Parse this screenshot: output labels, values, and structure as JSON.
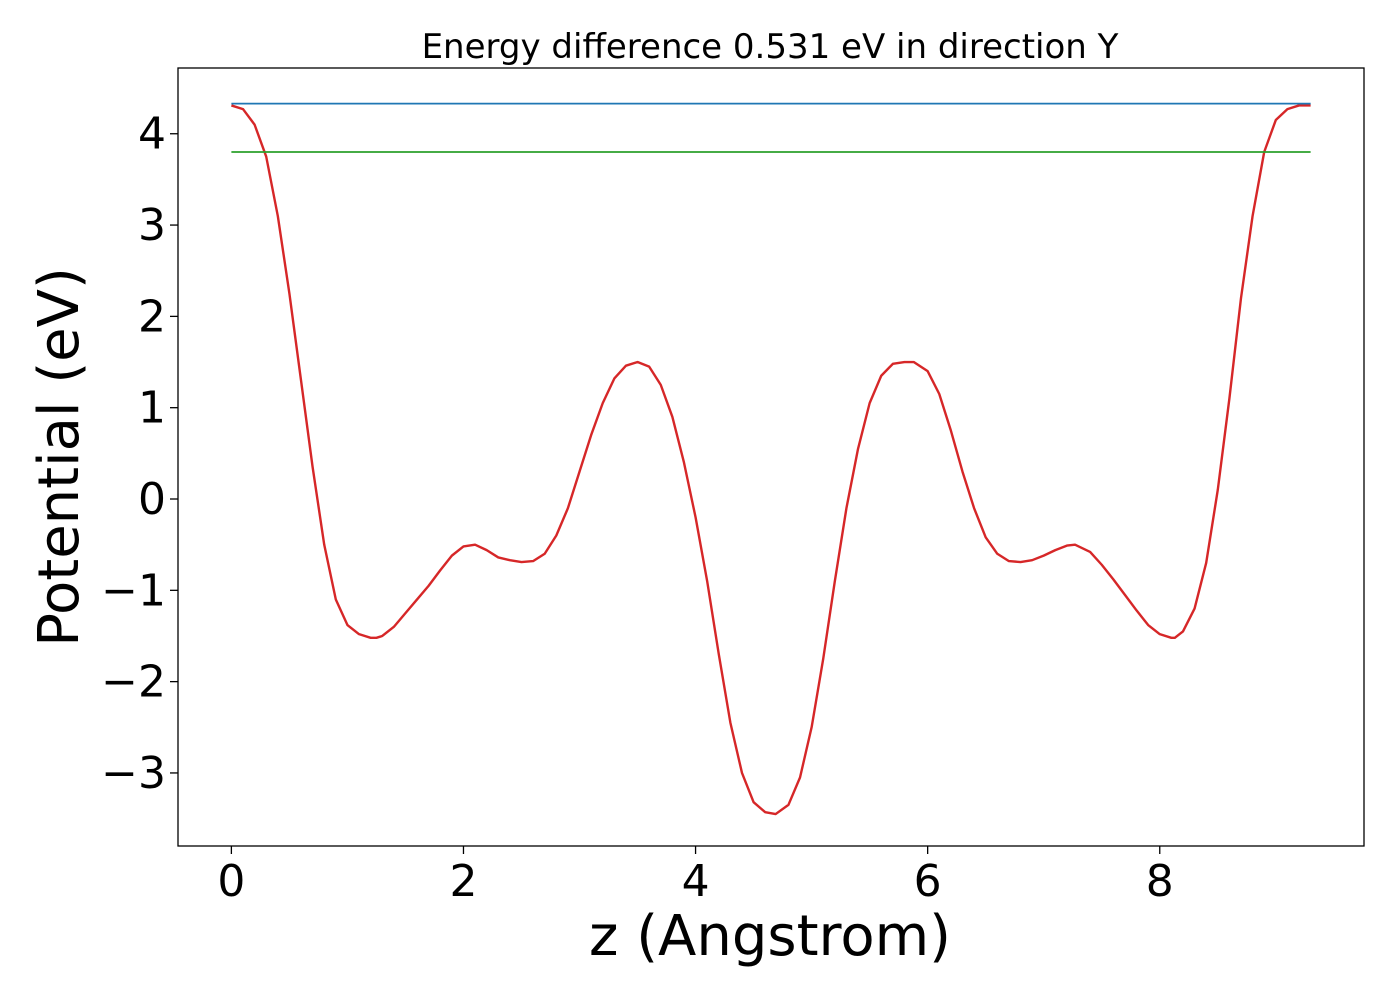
{
  "chart_data": {
    "type": "line",
    "title": "Energy difference 0.531 eV in direction Y",
    "xlabel": "z (Angstrom)",
    "ylabel": "Potential (eV)",
    "xlim": [
      -0.46,
      9.76
    ],
    "ylim": [
      -3.8,
      4.72
    ],
    "xticks": [
      0,
      2,
      4,
      6,
      8
    ],
    "xtick_labels": [
      "0",
      "2",
      "4",
      "6",
      "8"
    ],
    "yticks": [
      -3,
      -2,
      -1,
      0,
      1,
      2,
      3,
      4
    ],
    "ytick_labels": [
      "−3",
      "−2",
      "−1",
      "0",
      "1",
      "2",
      "3",
      "4"
    ],
    "grid": false,
    "legend": "none",
    "series": [
      {
        "color": "#d62728",
        "x": [
          0,
          0.1,
          0.2,
          0.3,
          0.4,
          0.5,
          0.6,
          0.7,
          0.8,
          0.9,
          1.0,
          1.1,
          1.2,
          1.25,
          1.3,
          1.4,
          1.5,
          1.6,
          1.7,
          1.8,
          1.9,
          2.0,
          2.1,
          2.2,
          2.3,
          2.4,
          2.5,
          2.6,
          2.7,
          2.8,
          2.9,
          3.0,
          3.1,
          3.2,
          3.3,
          3.4,
          3.5,
          3.6,
          3.7,
          3.8,
          3.9,
          4.0,
          4.1,
          4.2,
          4.3,
          4.4,
          4.5,
          4.6,
          4.69,
          4.8,
          4.9,
          5.0,
          5.1,
          5.2,
          5.3,
          5.4,
          5.5,
          5.6,
          5.7,
          5.8,
          5.88,
          6.0,
          6.1,
          6.2,
          6.3,
          6.4,
          6.5,
          6.6,
          6.7,
          6.8,
          6.9,
          7.0,
          7.1,
          7.2,
          7.27,
          7.4,
          7.5,
          7.6,
          7.7,
          7.8,
          7.9,
          8.0,
          8.1,
          8.13,
          8.2,
          8.3,
          8.4,
          8.5,
          8.6,
          8.7,
          8.8,
          8.9,
          9.0,
          9.1,
          9.2,
          9.3
        ],
        "y": [
          4.31,
          4.27,
          4.1,
          3.75,
          3.1,
          2.25,
          1.3,
          0.35,
          -0.5,
          -1.1,
          -1.38,
          -1.48,
          -1.52,
          -1.52,
          -1.5,
          -1.4,
          -1.25,
          -1.1,
          -0.95,
          -0.78,
          -0.62,
          -0.52,
          -0.5,
          -0.56,
          -0.64,
          -0.67,
          -0.69,
          -0.68,
          -0.6,
          -0.4,
          -0.1,
          0.3,
          0.7,
          1.05,
          1.32,
          1.46,
          1.5,
          1.45,
          1.25,
          0.9,
          0.4,
          -0.2,
          -0.9,
          -1.7,
          -2.45,
          -3.0,
          -3.32,
          -3.43,
          -3.45,
          -3.35,
          -3.05,
          -2.5,
          -1.75,
          -0.9,
          -0.1,
          0.55,
          1.05,
          1.35,
          1.48,
          1.5,
          1.5,
          1.4,
          1.15,
          0.75,
          0.3,
          -0.1,
          -0.42,
          -0.6,
          -0.68,
          -0.69,
          -0.67,
          -0.62,
          -0.56,
          -0.51,
          -0.5,
          -0.58,
          -0.72,
          -0.88,
          -1.05,
          -1.22,
          -1.38,
          -1.48,
          -1.52,
          -1.52,
          -1.45,
          -1.2,
          -0.7,
          0.1,
          1.1,
          2.2,
          3.1,
          3.8,
          4.15,
          4.27,
          4.31,
          4.31
        ]
      },
      {
        "color": "#1f77b4",
        "x": [
          0,
          9.3
        ],
        "y": [
          4.33,
          4.33
        ]
      },
      {
        "color": "#2ca02c",
        "x": [
          0,
          9.3
        ],
        "y": [
          3.8,
          3.8
        ]
      }
    ]
  }
}
